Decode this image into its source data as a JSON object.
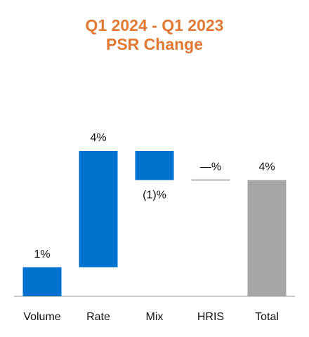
{
  "chart_data": {
    "type": "waterfall",
    "title": [
      "Q1 2024 - Q1 2023",
      "PSR Change"
    ],
    "categories": [
      "Volume",
      "Rate",
      "Mix",
      "HRIS",
      "Total"
    ],
    "values": [
      1,
      4,
      -1,
      0,
      4
    ],
    "value_labels": [
      "1%",
      "4%",
      "(1)%",
      "—%",
      "4%"
    ],
    "measures": [
      "relative",
      "relative",
      "relative",
      "relative",
      "total"
    ],
    "colors": [
      "#0072CE",
      "#0072CE",
      "#0072CE",
      "#999999",
      "#A6A6A6"
    ]
  }
}
